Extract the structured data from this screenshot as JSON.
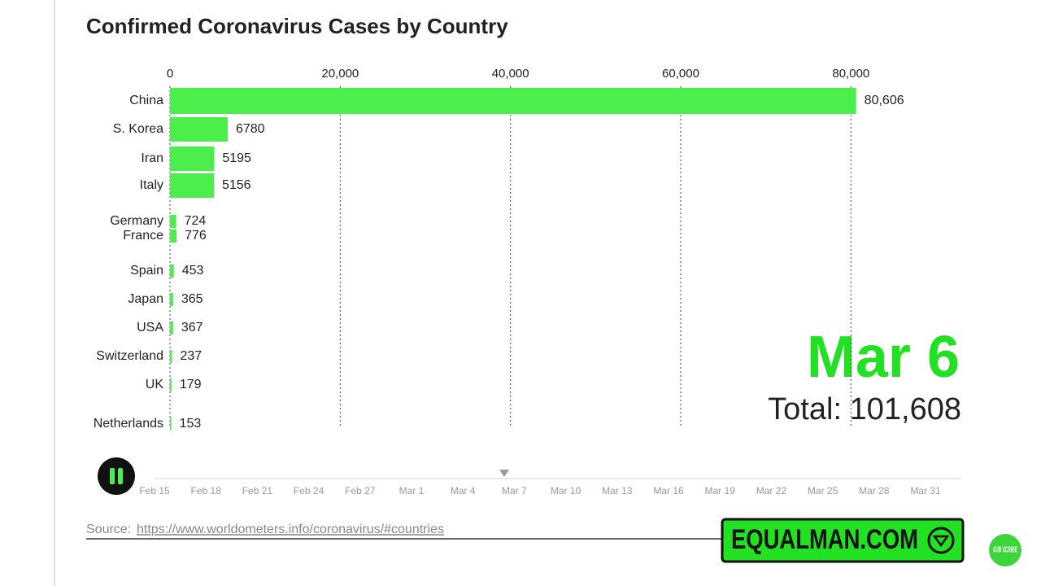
{
  "chart_data": {
    "type": "bar",
    "orientation": "horizontal",
    "title": "Confirmed Coronavirus Cases by Country",
    "categories": [
      "China",
      "S. Korea",
      "Iran",
      "Italy",
      "Germany",
      "France",
      "Spain",
      "Japan",
      "USA",
      "Switzerland",
      "UK",
      "Netherlands"
    ],
    "values": [
      80606,
      6780,
      5195,
      5156,
      724,
      776,
      453,
      365,
      367,
      237,
      179,
      153
    ],
    "value_labels": [
      "80,606",
      "6780",
      "5195",
      "5156",
      "724",
      "776",
      "453",
      "365",
      "367",
      "237",
      "179",
      "153"
    ],
    "color": "#4cee4c",
    "xlim": [
      0,
      90000
    ],
    "xticks": [
      0,
      {
        "value": 20000,
        "label": "20,000"
      },
      {
        "value": 40000,
        "label": "40,000"
      },
      {
        "value": 60000,
        "label": "60,000"
      },
      {
        "value": 80000,
        "label": "80,000"
      }
    ],
    "grid": true,
    "date": "Mar 6",
    "date_color": "#22e022",
    "total_label": "Total:",
    "total": "101,608",
    "timeline": [
      "Feb 15",
      "Feb 18",
      "Feb 21",
      "Feb 24",
      "Feb 27",
      "Mar 1",
      "Mar 4",
      "Mar 7",
      "Mar 10",
      "Mar 13",
      "Mar 16",
      "Mar 19",
      "Mar 22",
      "Mar 25",
      "Mar 28",
      "Mar 31"
    ],
    "source_label": "Source:",
    "source_url": "https://www.worldometers.info/coronavirus/#countries",
    "logo": "EQUALMAN.COM",
    "subscribe": "SUB SCRIBE"
  }
}
